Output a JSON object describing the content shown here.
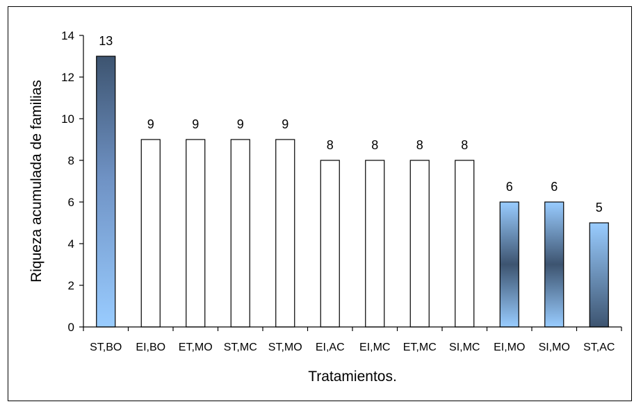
{
  "chart_data": {
    "type": "bar",
    "title": "",
    "xlabel": "Tratamientos.",
    "ylabel": "Riqueza acumulada de familias",
    "ylim": [
      0,
      14
    ],
    "yticks": [
      0,
      2,
      4,
      6,
      8,
      10,
      12,
      14
    ],
    "grid": false,
    "legend": "none",
    "categories": [
      "ST,BO",
      "EI,BO",
      "ET,MO",
      "ST,MC",
      "ST,MO",
      "EI,AC",
      "EI,MC",
      "ET,MC",
      "SI,MC",
      "EI,MO",
      "SI,MO",
      "ST,AC"
    ],
    "values": [
      13,
      9,
      9,
      9,
      9,
      8,
      8,
      8,
      8,
      6,
      6,
      5
    ],
    "bar_fill": [
      "gradient-light",
      "white",
      "white",
      "white",
      "white",
      "white",
      "white",
      "white",
      "white",
      "gradient-dark-middle",
      "gradient-dark-middle",
      "gradient-dark-bottom"
    ],
    "colors": {
      "light_blue": "#99ccff",
      "dark_blue": "#3d5470",
      "bar_outline": "#000000",
      "white": "#ffffff"
    }
  }
}
